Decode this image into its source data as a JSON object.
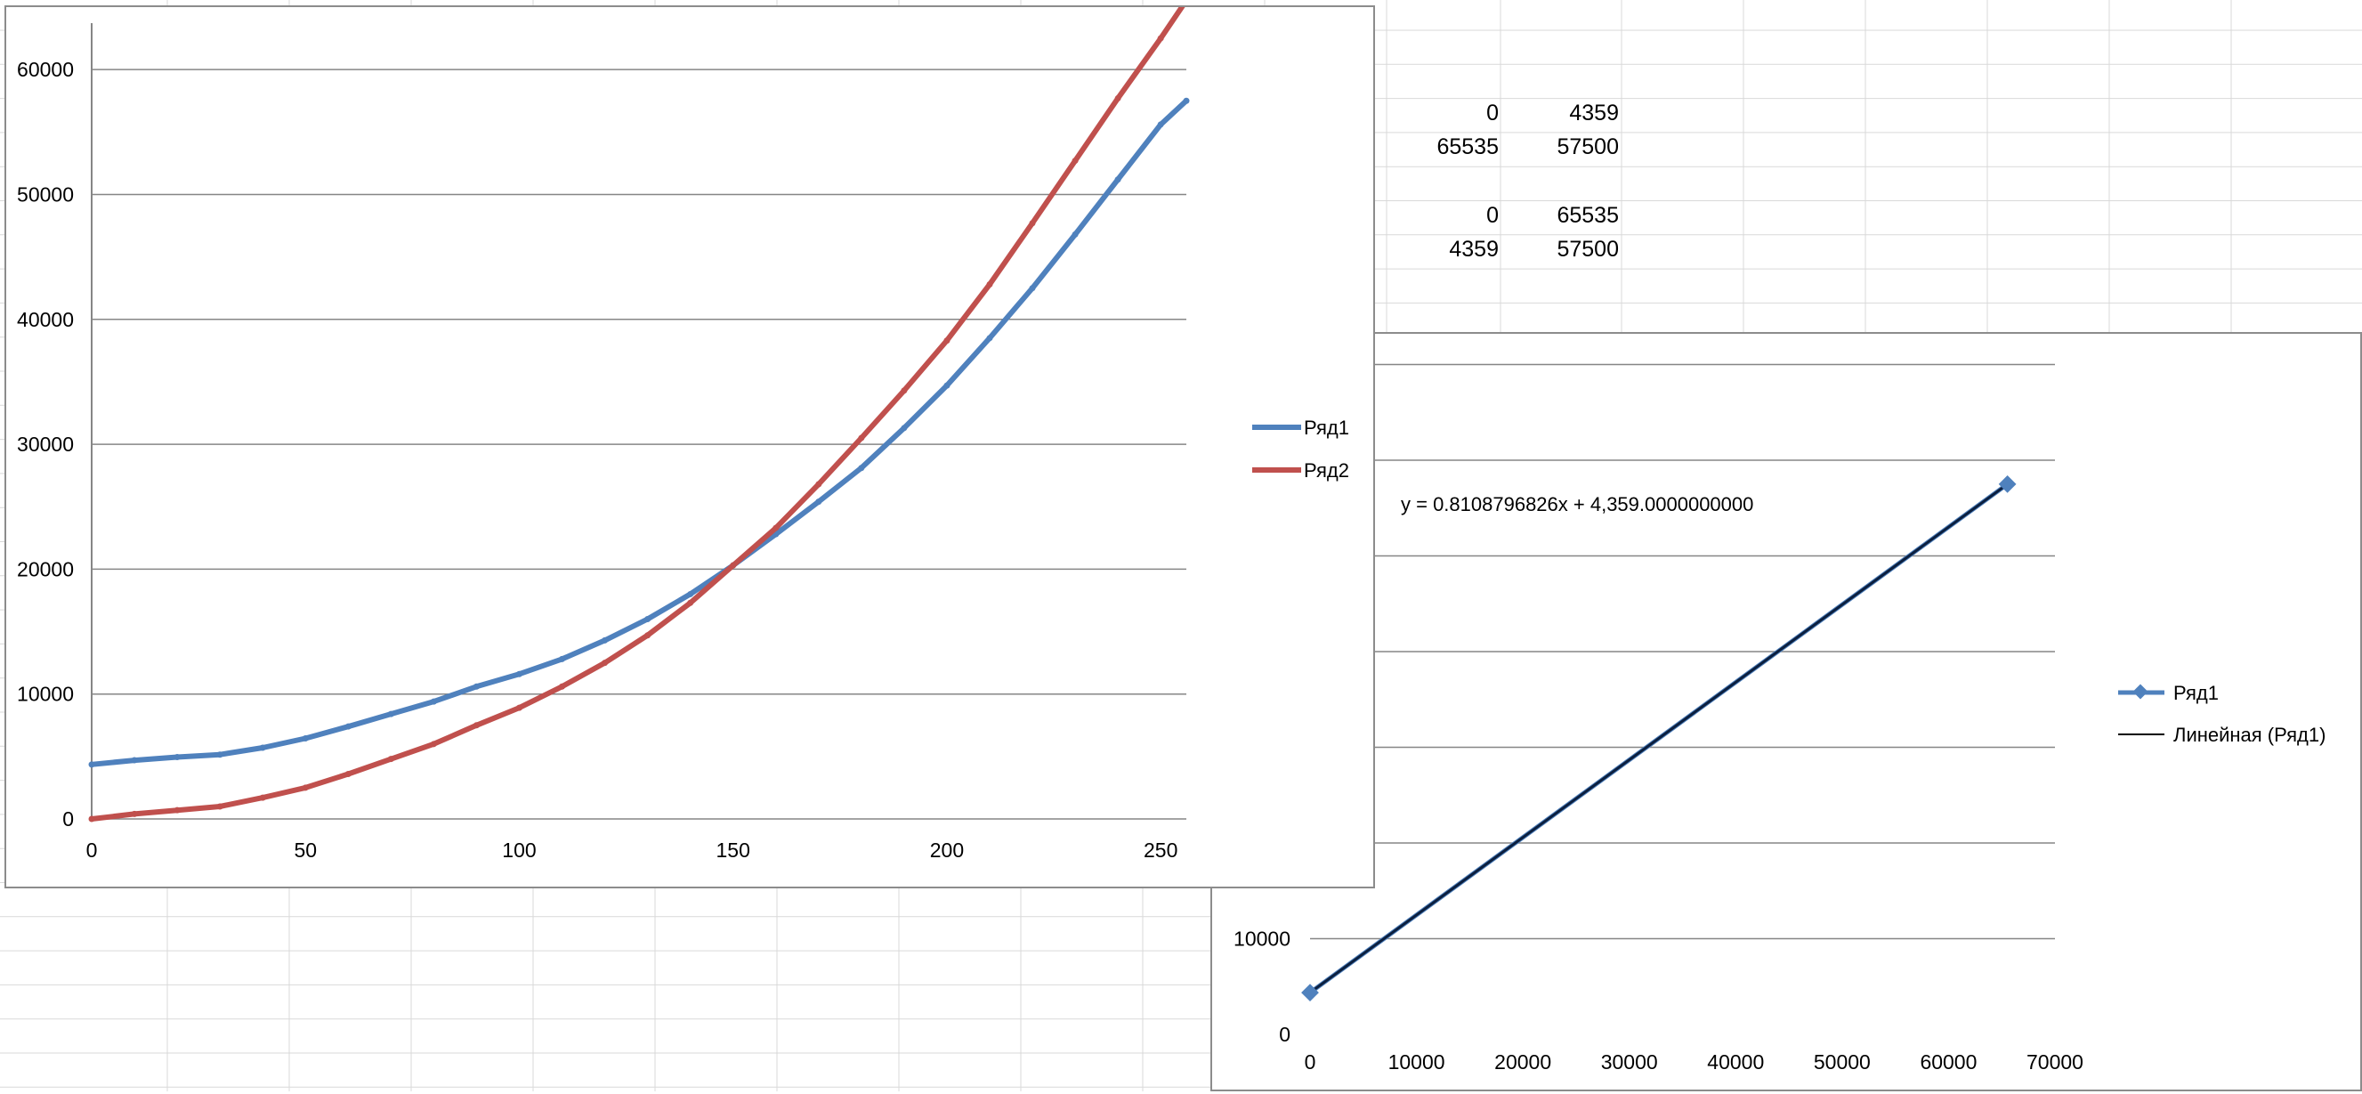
{
  "sheet": {
    "cells": [
      [
        "0",
        "4359"
      ],
      [
        "65535",
        "57500"
      ],
      [
        "0",
        "65535"
      ],
      [
        "4359",
        "57500"
      ]
    ]
  },
  "colors": {
    "series1": "#4f81bd",
    "series2": "#c0504d",
    "trendline": "#0b1f3f",
    "gridline": "#868686",
    "sheet_grid": "#d9d9d9"
  },
  "chart_data": [
    {
      "type": "line",
      "title": "",
      "xlabel": "",
      "ylabel": "",
      "xlim": [
        0,
        256
      ],
      "ylim": [
        0,
        65000
      ],
      "xticks": [
        "0",
        "50",
        "100",
        "150",
        "200",
        "250"
      ],
      "yticks": [
        "0",
        "10000",
        "20000",
        "30000",
        "40000",
        "50000",
        "60000"
      ],
      "grid": true,
      "legend": "right",
      "series": [
        {
          "name": "Ряд1",
          "x": [
            0,
            10,
            20,
            30,
            40,
            50,
            60,
            70,
            80,
            90,
            100,
            110,
            120,
            130,
            140,
            150,
            160,
            170,
            180,
            190,
            200,
            210,
            220,
            230,
            240,
            250,
            256
          ],
          "y": [
            4359,
            4700,
            4950,
            5150,
            5700,
            6450,
            7400,
            8400,
            9400,
            10600,
            11600,
            12800,
            14300,
            16000,
            18000,
            20300,
            22800,
            25400,
            28100,
            31300,
            34700,
            38500,
            42500,
            46800,
            51200,
            55600,
            57500
          ]
        },
        {
          "name": "Ряд2",
          "x": [
            0,
            10,
            20,
            30,
            40,
            50,
            60,
            70,
            80,
            90,
            100,
            110,
            120,
            130,
            140,
            150,
            160,
            170,
            180,
            190,
            200,
            210,
            220,
            230,
            240,
            250,
            256
          ],
          "y": [
            0,
            400,
            700,
            1000,
            1700,
            2500,
            3600,
            4800,
            6000,
            7500,
            8900,
            10600,
            12500,
            14700,
            17300,
            20300,
            23300,
            26800,
            30500,
            34300,
            38300,
            42800,
            47700,
            52700,
            57700,
            62500,
            65535
          ]
        }
      ]
    },
    {
      "type": "scatter",
      "title": "",
      "xlabel": "",
      "ylabel": "",
      "xlim": [
        0,
        70000
      ],
      "ylim": [
        0,
        70000
      ],
      "xticks": [
        "0",
        "10000",
        "20000",
        "30000",
        "40000",
        "50000",
        "60000",
        "70000"
      ],
      "yticks": [
        "0",
        "10000"
      ],
      "grid": true,
      "legend": "right",
      "series": [
        {
          "name": "Ряд1",
          "x": [
            0,
            65535
          ],
          "y": [
            4359,
            57500
          ],
          "marker": "diamond"
        }
      ],
      "trendline": {
        "name": "Линейная (Ряд1)",
        "type": "linear",
        "equation": "y = 0.8108796826x + 4,359.0000000000"
      }
    }
  ]
}
